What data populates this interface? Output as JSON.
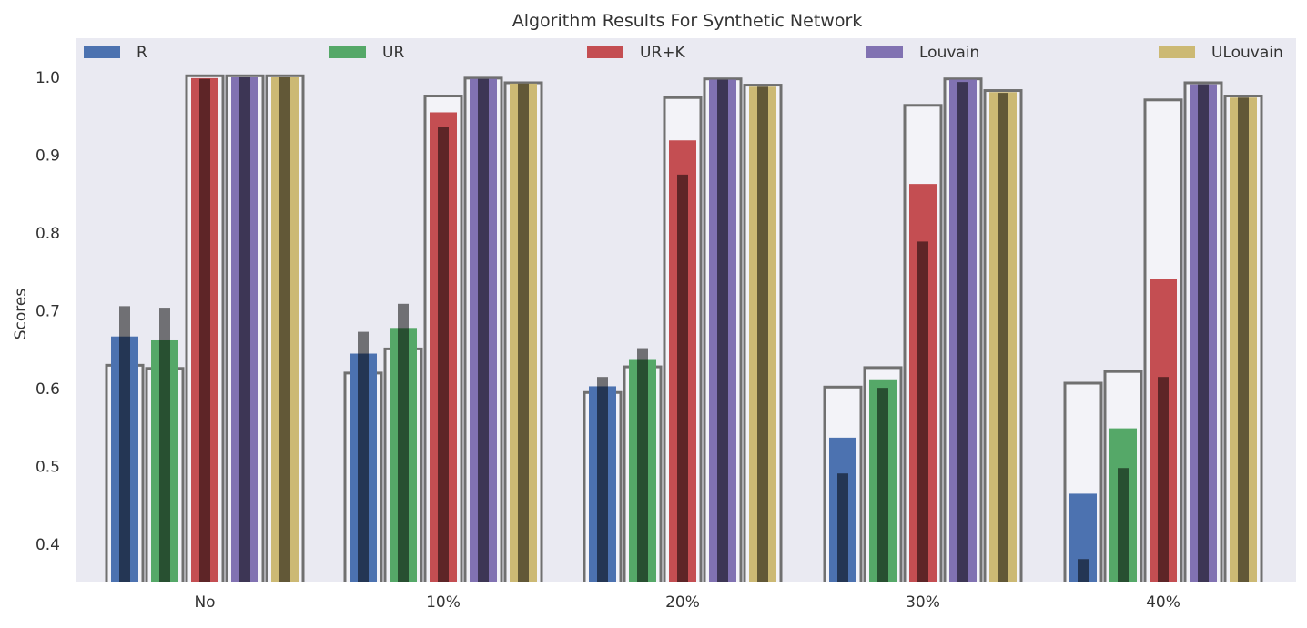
{
  "chart_data": {
    "type": "bar",
    "title": "Algorithm Results For Synthetic Network",
    "xlabel": "",
    "ylabel": "Scores",
    "ylim": [
      0.35,
      1.05
    ],
    "yticks": [
      "0.4",
      "0.5",
      "0.6",
      "0.7",
      "0.8",
      "0.9",
      "1.0"
    ],
    "categories": [
      "No",
      "10%",
      "20%",
      "30%",
      "40%"
    ],
    "grid": false,
    "legend_position": "top",
    "background_color": "#eaeaf2",
    "series": [
      {
        "name": "R",
        "color": "#4c72b0",
        "values": [
          0.667,
          0.645,
          0.603,
          0.537,
          0.465
        ],
        "inner_values": [
          0.706,
          0.673,
          0.615,
          0.491,
          0.381
        ],
        "outline_values": [
          0.63,
          0.62,
          0.595,
          0.602,
          0.607
        ]
      },
      {
        "name": "UR",
        "color": "#55a868",
        "values": [
          0.662,
          0.678,
          0.638,
          0.612,
          0.549
        ],
        "inner_values": [
          0.704,
          0.709,
          0.652,
          0.601,
          0.498
        ],
        "outline_values": [
          0.626,
          0.651,
          0.628,
          0.627,
          0.622
        ]
      },
      {
        "name": "UR+K",
        "color": "#c44e52",
        "values": [
          0.999,
          0.955,
          0.919,
          0.863,
          0.741
        ],
        "inner_values": [
          0.998,
          0.936,
          0.875,
          0.789,
          0.615
        ],
        "outline_values": [
          1.002,
          0.976,
          0.974,
          0.964,
          0.971
        ]
      },
      {
        "name": "Louvain",
        "color": "#8172b2",
        "values": [
          1.0,
          0.998,
          0.997,
          0.997,
          0.991
        ],
        "inner_values": [
          1.0,
          0.998,
          0.997,
          0.994,
          0.991
        ],
        "outline_values": [
          1.002,
          0.999,
          0.998,
          0.998,
          0.993
        ]
      },
      {
        "name": "ULouvain",
        "color": "#ccb974",
        "values": [
          1.0,
          0.992,
          0.988,
          0.981,
          0.974
        ],
        "inner_values": [
          1.0,
          0.992,
          0.988,
          0.98,
          0.974
        ],
        "outline_values": [
          1.002,
          0.993,
          0.99,
          0.983,
          0.976
        ]
      }
    ]
  }
}
